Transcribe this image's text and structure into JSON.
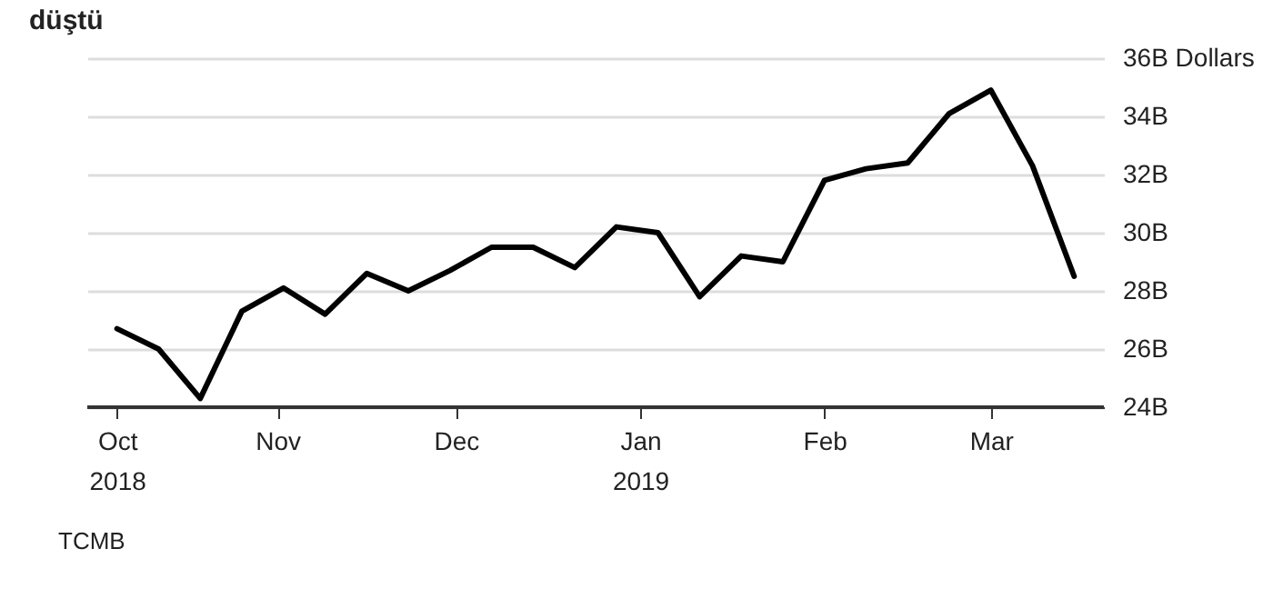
{
  "chart_data": {
    "type": "line",
    "title": "düştü",
    "x": [
      "2018-10-05",
      "2018-10-12",
      "2018-10-19",
      "2018-10-26",
      "2018-11-02",
      "2018-11-09",
      "2018-11-16",
      "2018-11-23",
      "2018-11-30",
      "2018-12-07",
      "2018-12-14",
      "2018-12-21",
      "2018-12-28",
      "2019-01-04",
      "2019-01-11",
      "2019-01-18",
      "2019-01-25",
      "2019-02-01",
      "2019-02-08",
      "2019-02-15",
      "2019-02-22",
      "2019-03-01",
      "2019-03-08",
      "2019-03-15"
    ],
    "series": [
      {
        "color": "#000000",
        "values": [
          26.7,
          26.0,
          24.3,
          27.3,
          28.1,
          27.2,
          28.6,
          28.0,
          28.7,
          29.5,
          29.5,
          28.8,
          30.2,
          30.0,
          27.8,
          29.2,
          29.0,
          31.8,
          32.2,
          32.4,
          34.1,
          34.9,
          32.3,
          28.5
        ]
      }
    ],
    "xlim": [
      "2018-09-30",
      "2019-03-20"
    ],
    "xticks": [
      {
        "value": "2018-10-05",
        "label": "Oct 2018"
      },
      {
        "value": "2018-11-01",
        "label": "Nov"
      },
      {
        "value": "2018-12-01",
        "label": "Dec"
      },
      {
        "value": "2019-01-01",
        "label": "Jan 2019"
      },
      {
        "value": "2019-02-01",
        "label": "Feb"
      },
      {
        "value": "2019-03-01",
        "label": "Mar"
      }
    ],
    "ylim": [
      24,
      36
    ],
    "yticks": [
      {
        "value": 24,
        "label": "24B"
      },
      {
        "value": 26,
        "label": "26B"
      },
      {
        "value": 28,
        "label": "28B"
      },
      {
        "value": 30,
        "label": "30B"
      },
      {
        "value": 32,
        "label": "32B"
      },
      {
        "value": 34,
        "label": "34B"
      },
      {
        "value": 36,
        "label": "36B Dollars"
      }
    ],
    "grid": "y",
    "marker": "none",
    "line_style": "solid",
    "annotations": [
      "TCMB"
    ]
  }
}
